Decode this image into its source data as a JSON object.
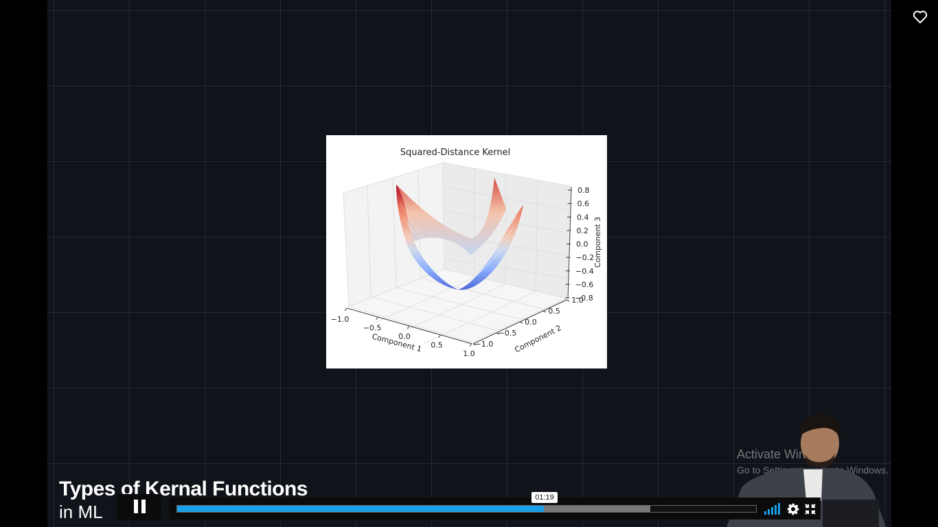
{
  "video": {
    "slide_title": "Types of Kernal Functions",
    "slide_subtitle": "in ML",
    "progress": {
      "played_fraction": 0.634,
      "buffered_fraction": 0.817,
      "time_tooltip": "01:19"
    },
    "controls": {
      "pause_icon": "pause-icon",
      "volume_icon": "volume-bars-icon",
      "settings_icon": "gear-icon",
      "exit_fullscreen_icon": "exit-fullscreen-icon",
      "favorite_icon": "heart-icon"
    },
    "colors": {
      "progress_played": "#1aa0ea",
      "progress_buffered": "#7a7a7a",
      "background": "#10131a"
    }
  },
  "watermark": {
    "line1": "Activate Windows",
    "line2": "Go to Settings to activate Windows."
  },
  "chart_data": {
    "type": "surface3d",
    "title": "Squared-Distance Kernel",
    "xlabel": "Component 1",
    "ylabel": "Component 2",
    "zlabel": "Component 3",
    "x_ticks": [
      "−1.0",
      "−0.5",
      "0.0",
      "0.5",
      "1.0"
    ],
    "y_ticks": [
      "−1.0",
      "−0.5",
      "0.0",
      "0.5",
      "1.0"
    ],
    "z_ticks": [
      "0.8",
      "0.6",
      "0.4",
      "0.2",
      "0.0",
      "−0.2",
      "−0.4",
      "−0.6",
      "−0.8"
    ],
    "xlim": [
      -1.0,
      1.0
    ],
    "ylim": [
      -1.0,
      1.0
    ],
    "zlim": [
      -0.8,
      0.8
    ],
    "colormap": "coolwarm",
    "grid": true
  }
}
